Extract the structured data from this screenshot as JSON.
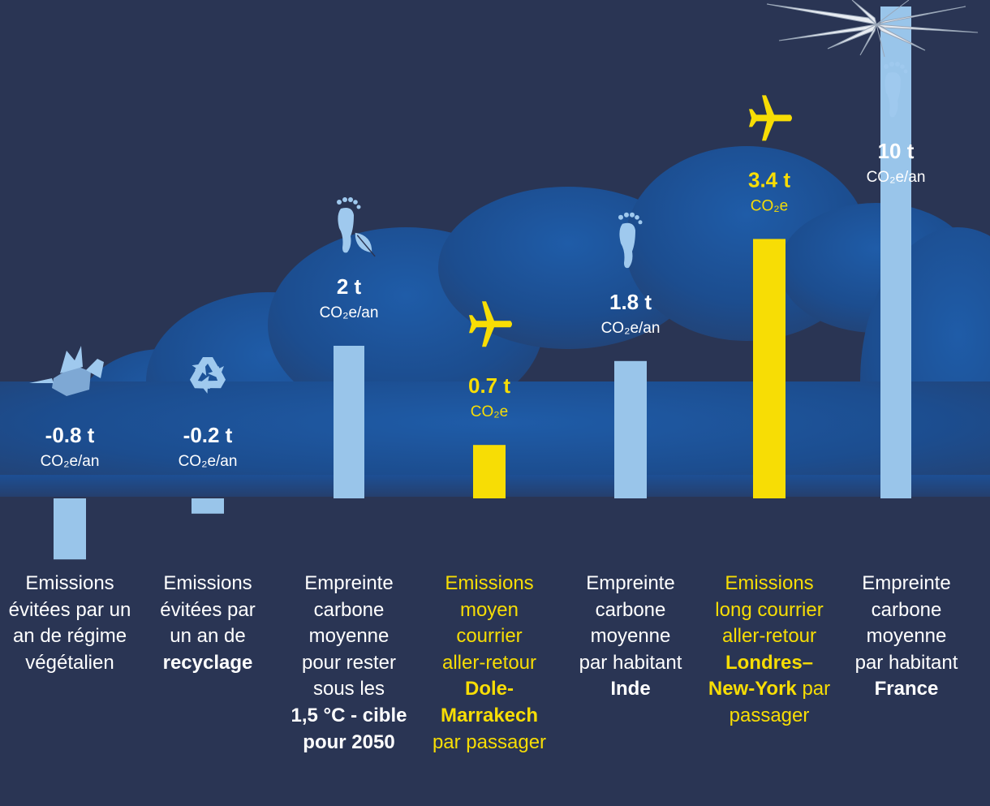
{
  "colors": {
    "background": "#2a3554",
    "cloud": "#1d4f94",
    "bar_blue": "#99c5ea",
    "bar_yellow": "#f7dd05",
    "text": "#ffffff",
    "accent_text": "#f7dd05"
  },
  "chart_data": {
    "type": "bar",
    "baseline": 0,
    "categories": [
      "Emissions évitées par un an de régime végétalien",
      "Emissions évitées par un an de recyclage",
      "Empreinte carbone moyenne pour rester sous les 1,5 °C - cible pour 2050",
      "Emissions moyen courrier aller-retour Dole-Marrakech par passager",
      "Empreinte carbone moyenne par habitant Inde",
      "Emissions long courrier aller-retour Londres–New-York par passager",
      "Empreinte carbone moyenne par habitant France"
    ],
    "values": [
      -0.8,
      -0.2,
      2,
      0.7,
      1.8,
      3.4,
      10
    ],
    "bar_colors": [
      "#99c5ea",
      "#99c5ea",
      "#99c5ea",
      "#f7dd05",
      "#99c5ea",
      "#f7dd05",
      "#99c5ea"
    ],
    "value_labels": [
      "-0.8 t",
      "-0.2 t",
      "2 t",
      "0.7 t",
      "1.8 t",
      "3.4 t",
      "10 t"
    ],
    "unit_labels": [
      "CO₂e/an",
      "CO₂e/an",
      "CO₂e/an",
      "CO₂e",
      "CO₂e/an",
      "CO₂e",
      "CO₂e/an"
    ],
    "icons": [
      "vegetables-icon",
      "recycle-icon",
      "footprint-leaf-icon",
      "airplane-icon",
      "footprint-icon",
      "airplane-icon",
      "footprint-icon"
    ],
    "bar_clipped_at_top": [
      false,
      false,
      false,
      false,
      false,
      false,
      true
    ]
  },
  "descriptions": [
    {
      "lines": [
        [
          {
            "t": "Emissions"
          }
        ],
        [
          {
            "t": "évitées par un"
          }
        ],
        [
          {
            "t": "an de régime"
          }
        ],
        [
          {
            "t": "végétalien"
          }
        ]
      ]
    },
    {
      "lines": [
        [
          {
            "t": "Emissions"
          }
        ],
        [
          {
            "t": "évitées par"
          }
        ],
        [
          {
            "t": "un an de"
          }
        ],
        [
          {
            "t": "recyclage",
            "b": true
          }
        ]
      ]
    },
    {
      "lines": [
        [
          {
            "t": "Empreinte"
          }
        ],
        [
          {
            "t": "carbone"
          }
        ],
        [
          {
            "t": "moyenne"
          }
        ],
        [
          {
            "t": "pour rester"
          }
        ],
        [
          {
            "t": "sous les"
          }
        ],
        [
          {
            "t": "1,5 °C - cible",
            "b": true
          }
        ],
        [
          {
            "t": "pour 2050",
            "b": true
          }
        ]
      ]
    },
    {
      "lines": [
        [
          {
            "t": "Emissions"
          }
        ],
        [
          {
            "t": "moyen"
          }
        ],
        [
          {
            "t": "courrier"
          }
        ],
        [
          {
            "t": "aller-retour"
          }
        ],
        [
          {
            "t": "Dole-",
            "b": true
          }
        ],
        [
          {
            "t": "Marrakech",
            "b": true
          }
        ],
        [
          {
            "t": "par passager"
          }
        ]
      ]
    },
    {
      "lines": [
        [
          {
            "t": "Empreinte"
          }
        ],
        [
          {
            "t": "carbone"
          }
        ],
        [
          {
            "t": "moyenne"
          }
        ],
        [
          {
            "t": "par habitant"
          }
        ],
        [
          {
            "t": "Inde",
            "b": true
          }
        ]
      ]
    },
    {
      "lines": [
        [
          {
            "t": "Emissions"
          }
        ],
        [
          {
            "t": "long courrier"
          }
        ],
        [
          {
            "t": "aller-retour"
          }
        ],
        [
          {
            "t": "Londres–",
            "b": true
          }
        ],
        [
          {
            "t": "New-York",
            "b": true
          },
          {
            "t": " par"
          }
        ],
        [
          {
            "t": "passager"
          }
        ]
      ]
    },
    {
      "lines": [
        [
          {
            "t": "Empreinte"
          }
        ],
        [
          {
            "t": "carbone"
          }
        ],
        [
          {
            "t": "moyenne"
          }
        ],
        [
          {
            "t": "par habitant"
          }
        ],
        [
          {
            "t": "France",
            "b": true,
            "w": true
          }
        ]
      ]
    }
  ]
}
